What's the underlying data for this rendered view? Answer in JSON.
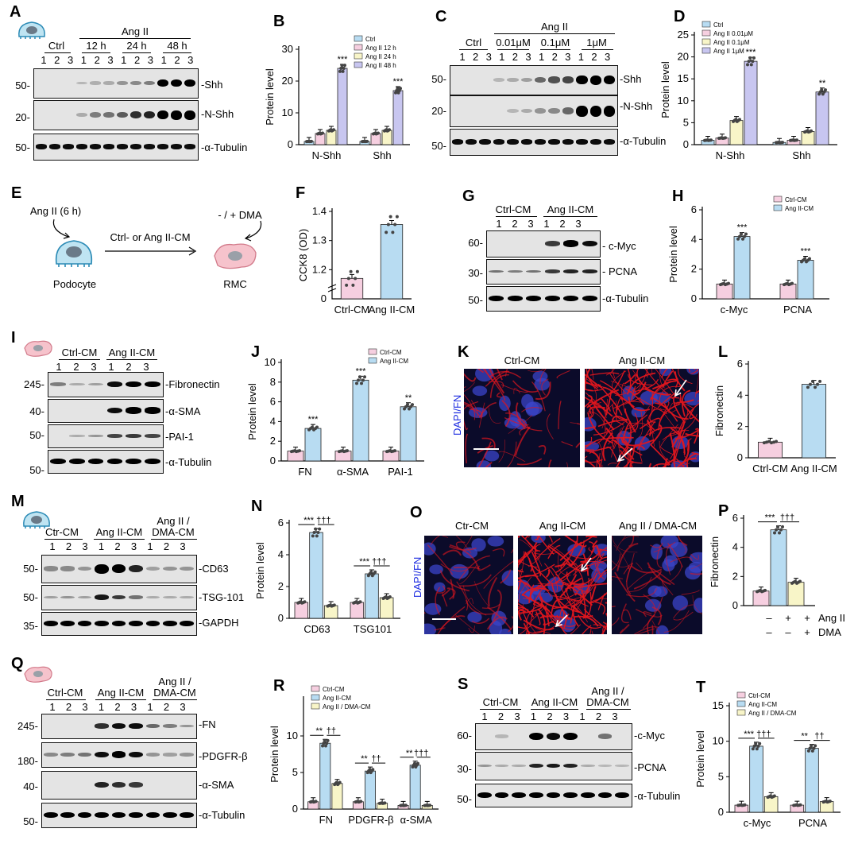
{
  "panels": {
    "A": "A",
    "B": "B",
    "C": "C",
    "D": "D",
    "E": "E",
    "F": "F",
    "G": "G",
    "H": "H",
    "I": "I",
    "J": "J",
    "K": "K",
    "L": "L",
    "M": "M",
    "N": "N",
    "O": "O",
    "P": "P",
    "Q": "Q",
    "R": "R",
    "S": "S",
    "T": "T"
  },
  "A": {
    "angii": "Ang II",
    "groups": [
      "Ctrl",
      "12 h",
      "24 h",
      "48 h"
    ],
    "lanes": [
      "1",
      "2",
      "3",
      "1",
      "2",
      "3",
      "1",
      "2",
      "3",
      "1",
      "2",
      "3"
    ],
    "mw": [
      "50-",
      "20-",
      "50-"
    ],
    "rows": [
      "Shh",
      "N-Shh",
      "α-Tubulin"
    ]
  },
  "C": {
    "angii": "Ang II",
    "groups": [
      "Ctrl",
      "0.01μM",
      "0.1μM",
      "1μM"
    ],
    "lanes": [
      "1",
      "2",
      "3",
      "1",
      "2",
      "3",
      "1",
      "2",
      "3",
      "1",
      "2",
      "3"
    ],
    "mw": [
      "50-",
      "20-",
      "50-"
    ],
    "rows": [
      "Shh",
      "N-Shh",
      "α-Tubulin"
    ]
  },
  "E": {
    "angii": "Ang II (6 h)",
    "cm": "Ctrl- or Ang II-CM",
    "dma": "- / + DMA",
    "podocyte": "Podocyte",
    "rmc": "RMC"
  },
  "G": {
    "groups": [
      "Ctrl-CM",
      "Ang II-CM"
    ],
    "lanes": [
      "1",
      "2",
      "3",
      "1",
      "2",
      "3"
    ],
    "mw": [
      "60-",
      "30-",
      "50-"
    ],
    "rows": [
      "c-Myc",
      "PCNA",
      "α-Tubulin"
    ]
  },
  "I": {
    "groups": [
      "Ctrl-CM",
      "Ang II-CM"
    ],
    "lanes": [
      "1",
      "2",
      "3",
      "1",
      "2",
      "3"
    ],
    "mw": [
      "245-",
      "40-",
      "50-",
      "50-"
    ],
    "rows": [
      "Fibronectin",
      "α-SMA",
      "PAI-1",
      "α-Tubulin"
    ]
  },
  "K": {
    "titles": [
      "Ctrl-CM",
      "Ang II-CM"
    ],
    "stain": "DAPI/FN"
  },
  "M": {
    "groups": [
      "Ctr-CM",
      "Ang II-CM",
      "Ang II /",
      "DMA-CM"
    ],
    "lanes": [
      "1",
      "2",
      "3",
      "1",
      "2",
      "3",
      "1",
      "2",
      "3"
    ],
    "mw": [
      "50-",
      "50-",
      "35-"
    ],
    "rows": [
      "CD63",
      "TSG-101",
      "GAPDH"
    ]
  },
  "O": {
    "titles": [
      "Ctr-CM",
      "Ang II-CM",
      "Ang II / DMA-CM"
    ],
    "stain": "DAPI/FN"
  },
  "Q": {
    "groups": [
      "Ctrl-CM",
      "Ang II-CM",
      "Ang II /",
      "DMA-CM"
    ],
    "lanes": [
      "1",
      "2",
      "3",
      "1",
      "2",
      "3",
      "1",
      "2",
      "3"
    ],
    "mw": [
      "245-",
      "180-",
      "40-",
      "50-"
    ],
    "rows": [
      "FN",
      "PDGFR-β",
      "α-SMA",
      "α-Tubulin"
    ]
  },
  "S": {
    "groups": [
      "Ctrl-CM",
      "Ang II-CM",
      "Ang II /",
      "DMA-CM"
    ],
    "lanes": [
      "1",
      "2",
      "3",
      "1",
      "2",
      "3",
      "1",
      "2",
      "3"
    ],
    "mw": [
      "60-",
      "30-",
      "50-"
    ],
    "rows": [
      "c-Myc",
      "PCNA",
      "α-Tubulin"
    ]
  },
  "P_x": {
    "row1": [
      "–",
      "+",
      "+"
    ],
    "row2": [
      "–",
      "–",
      "+"
    ],
    "l1": "Ang II",
    "l2": "DMA"
  },
  "chart_data": [
    {
      "panel": "B",
      "type": "bar",
      "ylabel": "Protein level",
      "ylim": [
        0,
        30
      ],
      "yticks": [
        0,
        10,
        20,
        30
      ],
      "categories": [
        "N-Shh",
        "Shh"
      ],
      "series": [
        {
          "name": "Ctrl",
          "color": "#b8dcf2",
          "values": [
            1,
            1
          ]
        },
        {
          "name": "Ang II 12 h",
          "color": "#f6cfe0",
          "values": [
            3.5,
            3.5
          ]
        },
        {
          "name": "Ang II 24 h",
          "color": "#f8f5c8",
          "values": [
            4.5,
            4.5
          ]
        },
        {
          "name": "Ang II 48 h",
          "color": "#c8c6f0",
          "values": [
            24,
            17
          ]
        }
      ],
      "sig": [
        [
          "",
          "",
          "",
          "***"
        ],
        [
          "",
          "",
          "",
          "***"
        ]
      ],
      "legend": "top-right"
    },
    {
      "panel": "D",
      "type": "bar",
      "ylabel": "Protein level",
      "ylim": [
        0,
        25
      ],
      "yticks": [
        0,
        5,
        10,
        15,
        20,
        25
      ],
      "categories": [
        "N-Shh",
        "Shh"
      ],
      "series": [
        {
          "name": "Ctrl",
          "color": "#b8dcf2",
          "values": [
            1,
            0.5
          ]
        },
        {
          "name": "Ang II 0.01μM",
          "color": "#f6cfe0",
          "values": [
            1.5,
            1
          ]
        },
        {
          "name": "Ang II 0.1μM",
          "color": "#f8f5c8",
          "values": [
            5.5,
            3
          ]
        },
        {
          "name": "Ang II 1μM",
          "color": "#c8c6f0",
          "values": [
            19,
            12
          ]
        }
      ],
      "sig": [
        [
          "",
          "",
          "",
          "***"
        ],
        [
          "",
          "",
          "",
          "**"
        ]
      ],
      "legend": "top-left"
    },
    {
      "panel": "F",
      "type": "bar",
      "ylabel": "CCK8 (OD)",
      "ylim": [
        1.1,
        1.4
      ],
      "yticks": [
        1.2,
        1.3,
        1.4
      ],
      "ytick_labels": [
        "1.2",
        "1.3",
        "1.4"
      ],
      "categories": [
        "Ctrl-CM",
        "Ang II-CM"
      ],
      "series": [
        {
          "name": "",
          "color": [
            "#f6cfe0",
            "#b8dcf2"
          ],
          "values": [
            1.17,
            1.355
          ]
        }
      ],
      "sig": [
        [
          "",
          "***"
        ]
      ]
    },
    {
      "panel": "H",
      "type": "bar",
      "ylabel": "Protein level",
      "ylim": [
        0,
        6
      ],
      "yticks": [
        0,
        2,
        4,
        6
      ],
      "categories": [
        "c-Myc",
        "PCNA"
      ],
      "series": [
        {
          "name": "Ctrl-CM",
          "color": "#f6cfe0",
          "values": [
            1,
            1
          ]
        },
        {
          "name": "Ang II-CM",
          "color": "#b8dcf2",
          "values": [
            4.2,
            2.6
          ]
        }
      ],
      "sig": [
        [
          "",
          "***"
        ],
        [
          "",
          "***"
        ]
      ],
      "legend": "top-right"
    },
    {
      "panel": "J",
      "type": "bar",
      "ylabel": "Protein level",
      "ylim": [
        0,
        10
      ],
      "yticks": [
        0,
        2,
        4,
        6,
        8,
        10
      ],
      "categories": [
        "FN",
        "α-SMA",
        "PAI-1"
      ],
      "series": [
        {
          "name": "Ctrl-CM",
          "color": "#f6cfe0",
          "values": [
            1,
            1,
            1
          ]
        },
        {
          "name": "Ang II-CM",
          "color": "#b8dcf2",
          "values": [
            3.3,
            8.2,
            5.5
          ]
        }
      ],
      "sig": [
        [
          "",
          "***"
        ],
        [
          "",
          "***"
        ],
        [
          "",
          "**"
        ]
      ],
      "legend": "top-right"
    },
    {
      "panel": "L",
      "type": "bar",
      "ylabel": "Fibronectin",
      "ylim": [
        0,
        6
      ],
      "yticks": [
        0,
        2,
        4,
        6
      ],
      "categories": [
        "Ctrl-CM",
        "Ang II-CM"
      ],
      "series": [
        {
          "name": "",
          "color": [
            "#f6cfe0",
            "#b8dcf2"
          ],
          "values": [
            1,
            4.7
          ]
        }
      ],
      "sig": [
        [
          "",
          "***"
        ]
      ]
    },
    {
      "panel": "N",
      "type": "bar",
      "ylabel": "Protein level",
      "ylim": [
        0,
        6
      ],
      "yticks": [
        0,
        2,
        4,
        6
      ],
      "categories": [
        "CD63",
        "TSG101"
      ],
      "series": [
        {
          "name": "",
          "color": "#f6cfe0",
          "values": [
            1,
            1
          ]
        },
        {
          "name": "",
          "color": "#b8dcf2",
          "values": [
            5.4,
            2.8
          ]
        },
        {
          "name": "",
          "color": "#f8f5c8",
          "values": [
            0.8,
            1.3
          ]
        }
      ],
      "brackets": [
        [
          "***",
          "†††"
        ],
        [
          "***",
          "†††"
        ]
      ]
    },
    {
      "panel": "P",
      "type": "bar",
      "ylabel": "Fibronectin",
      "ylim": [
        0,
        6
      ],
      "yticks": [
        0,
        2,
        4,
        6
      ],
      "categories": [
        ""
      ],
      "series": [
        {
          "name": "",
          "color": "#f6cfe0",
          "values": [
            1
          ]
        },
        {
          "name": "",
          "color": "#b8dcf2",
          "values": [
            5.2
          ]
        },
        {
          "name": "",
          "color": "#f8f5c8",
          "values": [
            1.6
          ]
        }
      ],
      "brackets": [
        [
          "***",
          "†††"
        ]
      ]
    },
    {
      "panel": "R",
      "type": "bar",
      "ylabel": "Protein level",
      "ylim": [
        0,
        15
      ],
      "yticks": [
        0,
        5,
        10
      ],
      "categories": [
        "FN",
        "PDGFR-β",
        "α-SMA"
      ],
      "series": [
        {
          "name": "Ctrl-CM",
          "color": "#f6cfe0",
          "values": [
            1,
            1,
            0.5
          ]
        },
        {
          "name": "Ang II-CM",
          "color": "#b8dcf2",
          "values": [
            9,
            5.2,
            6
          ]
        },
        {
          "name": "Ang II / DMA-CM",
          "color": "#f8f5c8",
          "values": [
            3.5,
            0.8,
            0.5
          ]
        }
      ],
      "brackets": [
        [
          "**",
          "††"
        ],
        [
          "**",
          "††"
        ],
        [
          "**",
          "†††"
        ]
      ],
      "legend": "top-left"
    },
    {
      "panel": "T",
      "type": "bar",
      "ylabel": "Protein level",
      "ylim": [
        0,
        15
      ],
      "yticks": [
        0,
        5,
        10,
        15
      ],
      "categories": [
        "c-Myc",
        "PCNA"
      ],
      "series": [
        {
          "name": "Ctrl-CM",
          "color": "#f6cfe0",
          "values": [
            1,
            1
          ]
        },
        {
          "name": "Ang II-CM",
          "color": "#b8dcf2",
          "values": [
            9.3,
            9.0
          ]
        },
        {
          "name": "Ang II / DMA-CM",
          "color": "#f8f5c8",
          "values": [
            2.2,
            1.5
          ]
        }
      ],
      "brackets": [
        [
          "***",
          "†††"
        ],
        [
          "**",
          "††"
        ]
      ],
      "legend": "top-left"
    }
  ]
}
